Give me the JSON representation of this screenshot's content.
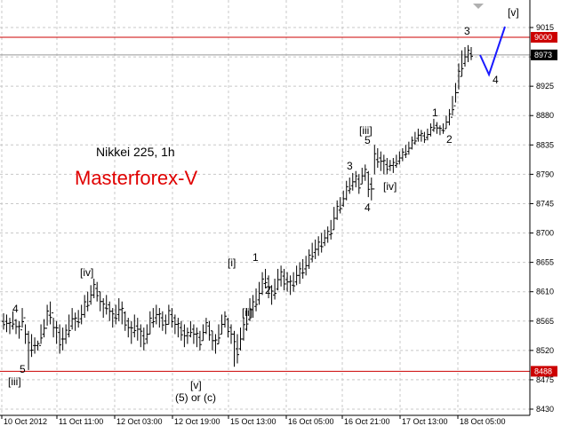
{
  "chart_data": {
    "type": "bar",
    "subtype": "ohlc",
    "title": "Nikkei 225, 1h",
    "watermark": "Masterforex-V",
    "ylim": [
      8430,
      9020
    ],
    "y_ticks": [
      9015,
      8970,
      8925,
      8880,
      8835,
      8790,
      8745,
      8700,
      8655,
      8610,
      8565,
      8520,
      8475,
      8430
    ],
    "x_ticks": [
      "10 Oct 2012",
      "11 Oct 11:00",
      "12 Oct 03:00",
      "12 Oct 19:00",
      "15 Oct 13:00",
      "16 Oct 05:00",
      "16 Oct 21:00",
      "17 Oct 13:00",
      "18 Oct 05:00"
    ],
    "levels": [
      {
        "label": "9000",
        "value": 9000,
        "color": "#cc0000"
      },
      {
        "label": "8488",
        "value": 8488,
        "color": "#cc0000"
      }
    ],
    "current_price": {
      "label": "8973",
      "value": 8973
    },
    "grid": true,
    "price_bars_hl": [
      [
        8577,
        8552
      ],
      [
        8575,
        8548
      ],
      [
        8570,
        8545
      ],
      [
        8580,
        8552
      ],
      [
        8568,
        8545
      ],
      [
        8565,
        8538
      ],
      [
        8585,
        8555
      ],
      [
        8560,
        8530
      ],
      [
        8550,
        8490
      ],
      [
        8545,
        8510
      ],
      [
        8540,
        8515
      ],
      [
        8535,
        8520
      ],
      [
        8560,
        8530
      ],
      [
        8568,
        8540
      ],
      [
        8590,
        8558
      ],
      [
        8595,
        8560
      ],
      [
        8570,
        8540
      ],
      [
        8565,
        8530
      ],
      [
        8560,
        8515
      ],
      [
        8555,
        8520
      ],
      [
        8560,
        8530
      ],
      [
        8575,
        8540
      ],
      [
        8585,
        8552
      ],
      [
        8578,
        8550
      ],
      [
        8582,
        8555
      ],
      [
        8590,
        8560
      ],
      [
        8605,
        8570
      ],
      [
        8610,
        8580
      ],
      [
        8620,
        8590
      ],
      [
        8630,
        8600
      ],
      [
        8625,
        8595
      ],
      [
        8610,
        8580
      ],
      [
        8600,
        8570
      ],
      [
        8605,
        8575
      ],
      [
        8595,
        8565
      ],
      [
        8585,
        8555
      ],
      [
        8590,
        8560
      ],
      [
        8600,
        8565
      ],
      [
        8595,
        8560
      ],
      [
        8580,
        8550
      ],
      [
        8570,
        8540
      ],
      [
        8565,
        8530
      ],
      [
        8575,
        8540
      ],
      [
        8570,
        8535
      ],
      [
        8560,
        8525
      ],
      [
        8555,
        8520
      ],
      [
        8560,
        8530
      ],
      [
        8580,
        8545
      ],
      [
        8585,
        8555
      ],
      [
        8590,
        8560
      ],
      [
        8585,
        8555
      ],
      [
        8580,
        8550
      ],
      [
        8575,
        8545
      ],
      [
        8590,
        8560
      ],
      [
        8585,
        8555
      ],
      [
        8575,
        8545
      ],
      [
        8570,
        8540
      ],
      [
        8565,
        8535
      ],
      [
        8560,
        8525
      ],
      [
        8555,
        8530
      ],
      [
        8565,
        8540
      ],
      [
        8560,
        8530
      ],
      [
        8555,
        8525
      ],
      [
        8550,
        8520
      ],
      [
        8560,
        8535
      ],
      [
        8570,
        8545
      ],
      [
        8565,
        8535
      ],
      [
        8550,
        8520
      ],
      [
        8545,
        8515
      ],
      [
        8560,
        8530
      ],
      [
        8575,
        8545
      ],
      [
        8580,
        8555
      ],
      [
        8570,
        8540
      ],
      [
        8560,
        8530
      ],
      [
        8550,
        8495
      ],
      [
        8545,
        8500
      ],
      [
        8555,
        8520
      ],
      [
        8570,
        8535
      ],
      [
        8585,
        8550
      ],
      [
        8600,
        8565
      ],
      [
        8605,
        8570
      ],
      [
        8615,
        8580
      ],
      [
        8625,
        8590
      ],
      [
        8640,
        8605
      ],
      [
        8645,
        8615
      ],
      [
        8635,
        8600
      ],
      [
        8620,
        8590
      ],
      [
        8630,
        8598
      ],
      [
        8645,
        8612
      ],
      [
        8650,
        8618
      ],
      [
        8645,
        8612
      ],
      [
        8640,
        8610
      ],
      [
        8635,
        8605
      ],
      [
        8640,
        8610
      ],
      [
        8650,
        8620
      ],
      [
        8655,
        8622
      ],
      [
        8660,
        8630
      ],
      [
        8665,
        8635
      ],
      [
        8675,
        8645
      ],
      [
        8685,
        8655
      ],
      [
        8690,
        8660
      ],
      [
        8695,
        8665
      ],
      [
        8700,
        8670
      ],
      [
        8705,
        8680
      ],
      [
        8710,
        8685
      ],
      [
        8720,
        8690
      ],
      [
        8740,
        8705
      ],
      [
        8750,
        8720
      ],
      [
        8755,
        8730
      ],
      [
        8765,
        8740
      ],
      [
        8780,
        8750
      ],
      [
        8785,
        8760
      ],
      [
        8792,
        8765
      ],
      [
        8795,
        8770
      ],
      [
        8790,
        8760
      ],
      [
        8800,
        8775
      ],
      [
        8805,
        8780
      ],
      [
        8795,
        8755
      ],
      [
        8785,
        8750
      ],
      [
        8835,
        8790
      ],
      [
        8830,
        8800
      ],
      [
        8825,
        8795
      ],
      [
        8820,
        8790
      ],
      [
        8815,
        8790
      ],
      [
        8812,
        8795
      ],
      [
        8815,
        8792
      ],
      [
        8820,
        8800
      ],
      [
        8825,
        8805
      ],
      [
        8830,
        8810
      ],
      [
        8835,
        8815
      ],
      [
        8840,
        8820
      ],
      [
        8848,
        8828
      ],
      [
        8855,
        8835
      ],
      [
        8860,
        8840
      ],
      [
        8858,
        8840
      ],
      [
        8855,
        8838
      ],
      [
        8860,
        8842
      ],
      [
        8868,
        8848
      ],
      [
        8875,
        8855
      ],
      [
        8870,
        8852
      ],
      [
        8865,
        8850
      ],
      [
        8868,
        8852
      ],
      [
        8880,
        8860
      ],
      [
        8890,
        8865
      ],
      [
        8910,
        8880
      ],
      [
        8930,
        8900
      ],
      [
        8960,
        8920
      ],
      [
        8980,
        8940
      ],
      [
        8985,
        8955
      ],
      [
        8988,
        8962
      ],
      [
        8985,
        8965
      ]
    ]
  },
  "annotations": {
    "title_label": "Nikkei 225, 1h",
    "watermark_label": "Masterforex-V",
    "waves": [
      {
        "id": "w-4-left",
        "text": "4"
      },
      {
        "id": "w-5-left",
        "text": "5"
      },
      {
        "id": "w-iii-left",
        "text": "[iii]"
      },
      {
        "id": "w-iv-left",
        "text": "[iv]"
      },
      {
        "id": "w-v-bottom",
        "text": "[v]"
      },
      {
        "id": "w-5orc",
        "text": "(5) or (c)"
      },
      {
        "id": "w-i",
        "text": "[i]"
      },
      {
        "id": "w-1-a",
        "text": "1"
      },
      {
        "id": "w-2-a",
        "text": "2"
      },
      {
        "id": "w-ii",
        "text": "[ii]"
      },
      {
        "id": "w-3-mid",
        "text": "3"
      },
      {
        "id": "w-4-mid",
        "text": "4"
      },
      {
        "id": "w-iii-mid",
        "text": "[iii]"
      },
      {
        "id": "w-5-mid",
        "text": "5"
      },
      {
        "id": "w-iv-mid",
        "text": "[iv]"
      },
      {
        "id": "w-1-b",
        "text": "1"
      },
      {
        "id": "w-2-b",
        "text": "2"
      },
      {
        "id": "w-3-top",
        "text": "3"
      },
      {
        "id": "w-4-proj",
        "text": "4"
      },
      {
        "id": "w-v-top",
        "text": "[v]"
      }
    ]
  }
}
